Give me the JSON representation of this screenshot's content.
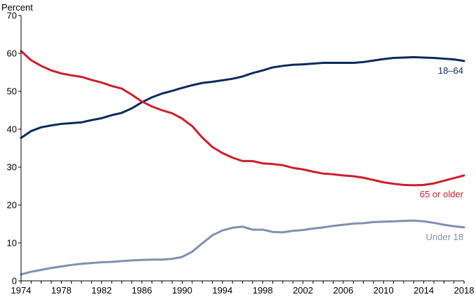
{
  "chart_data": {
    "type": "line",
    "ylabel": "Percent",
    "xlabel": "",
    "ylim": [
      0,
      70
    ],
    "xlim": [
      1974,
      2018
    ],
    "yticks": [
      0,
      10,
      20,
      30,
      40,
      50,
      60,
      70
    ],
    "xticks": [
      1974,
      1978,
      1982,
      1986,
      1990,
      1994,
      1998,
      2002,
      2006,
      2010,
      2014,
      2018
    ],
    "grid": false,
    "x": [
      1974,
      1975,
      1976,
      1977,
      1978,
      1979,
      1980,
      1981,
      1982,
      1983,
      1984,
      1985,
      1986,
      1987,
      1988,
      1989,
      1990,
      1991,
      1992,
      1993,
      1994,
      1995,
      1996,
      1997,
      1998,
      1999,
      2000,
      2001,
      2002,
      2003,
      2004,
      2005,
      2006,
      2007,
      2008,
      2009,
      2010,
      2011,
      2012,
      2013,
      2014,
      2015,
      2016,
      2017,
      2018
    ],
    "series": [
      {
        "name": "18–64",
        "color": "#0b2a5b",
        "values": [
          37.7,
          39.5,
          40.5,
          41.0,
          41.4,
          41.6,
          41.8,
          42.4,
          42.9,
          43.7,
          44.3,
          45.5,
          47.1,
          48.4,
          49.4,
          50.1,
          50.9,
          51.6,
          52.2,
          52.5,
          52.9,
          53.3,
          53.9,
          54.8,
          55.5,
          56.3,
          56.7,
          57.0,
          57.1,
          57.3,
          57.5,
          57.5,
          57.5,
          57.5,
          57.7,
          58.1,
          58.5,
          58.8,
          58.9,
          59.0,
          58.9,
          58.8,
          58.6,
          58.4,
          58.0
        ]
      },
      {
        "name": "65 or older",
        "color": "#cc1f2d",
        "values": [
          60.6,
          58.2,
          56.7,
          55.5,
          54.7,
          54.2,
          53.8,
          53.0,
          52.3,
          51.4,
          50.7,
          49.1,
          47.3,
          46.0,
          45.0,
          44.2,
          42.8,
          40.8,
          37.8,
          35.3,
          33.7,
          32.5,
          31.6,
          31.6,
          31.0,
          30.8,
          30.5,
          29.8,
          29.4,
          28.8,
          28.3,
          28.1,
          27.8,
          27.6,
          27.2,
          26.6,
          26.0,
          25.6,
          25.3,
          25.2,
          25.3,
          25.7,
          26.4,
          27.1,
          27.8
        ]
      },
      {
        "name": "Under 18",
        "color": "#8090b0",
        "values": [
          1.7,
          2.4,
          2.9,
          3.4,
          3.8,
          4.2,
          4.5,
          4.7,
          4.9,
          5.0,
          5.2,
          5.4,
          5.5,
          5.6,
          5.6,
          5.8,
          6.3,
          7.7,
          9.9,
          12.0,
          13.3,
          14.0,
          14.3,
          13.5,
          13.5,
          12.9,
          12.8,
          13.2,
          13.4,
          13.8,
          14.1,
          14.5,
          14.8,
          15.1,
          15.2,
          15.5,
          15.6,
          15.7,
          15.8,
          15.9,
          15.7,
          15.3,
          14.8,
          14.4,
          14.1
        ]
      }
    ]
  }
}
